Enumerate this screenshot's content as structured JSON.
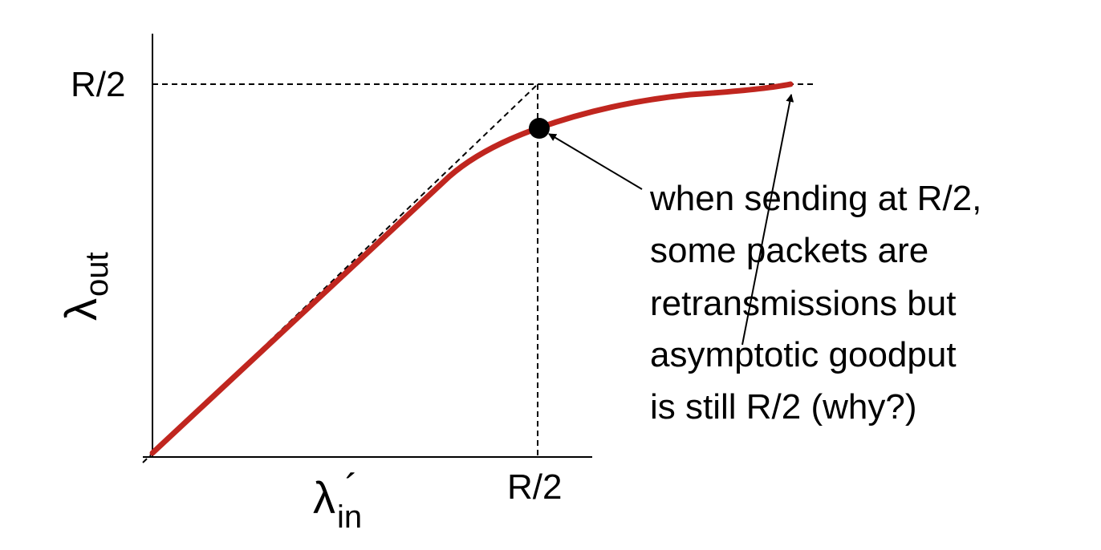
{
  "y_axis": {
    "tick_label": "R/2",
    "symbol": "λ",
    "subscript": "out"
  },
  "x_axis": {
    "tick_label": "R/2",
    "symbol": "λ",
    "prime": "´",
    "subscript": "in"
  },
  "annotation": {
    "lines": [
      "when sending at R/2,",
      "some packets are",
      "retransmissions but",
      "asymptotic goodput",
      "is still R/2 (why?)"
    ]
  }
}
